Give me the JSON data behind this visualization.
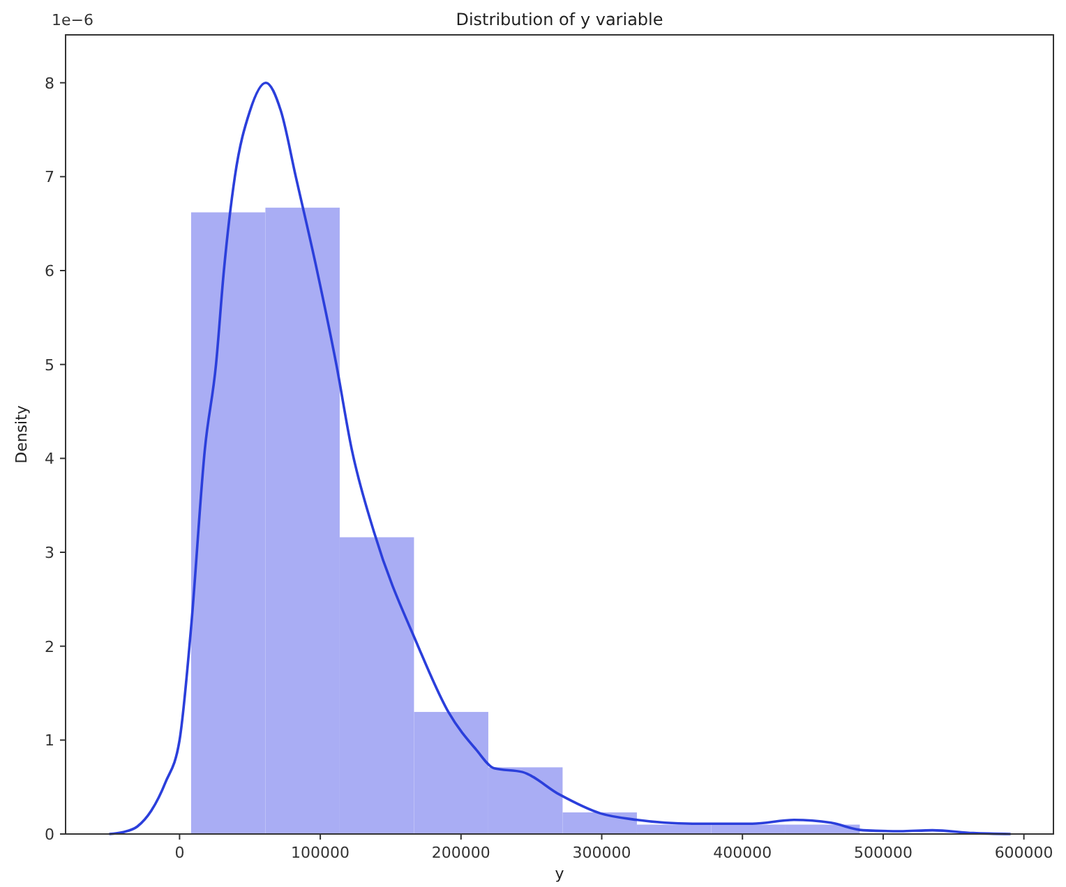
{
  "chart_data": {
    "type": "histogram",
    "title": "Distribution of y variable",
    "xlabel": "y",
    "ylabel": "Density",
    "annotations": [
      "1e−6"
    ],
    "xlim": [
      -81000,
      621000
    ],
    "xticks": [
      0,
      100000,
      200000,
      300000,
      400000,
      500000,
      600000
    ],
    "ylim": [
      0,
      8.51
    ],
    "yticks": [
      0,
      1,
      2,
      3,
      4,
      5,
      6,
      7,
      8
    ],
    "series": [
      {
        "color": "#a9adf4",
        "bins": [
          8200,
          61000,
          113800,
          166600,
          219400,
          272200,
          325000,
          377800,
          430600,
          483400
        ],
        "values": [
          6.62,
          6.67,
          3.16,
          1.3,
          0.71,
          0.23,
          0.1,
          0.1,
          0.1
        ]
      },
      {
        "type": "line",
        "color": "#2b3fdb",
        "x": [
          -50000,
          -40000,
          -30000,
          -20000,
          -10000,
          0,
          8200,
          18000,
          25900,
          31500,
          39300,
          50000,
          61300,
          72000,
          82600,
          97700,
          111400,
          122300,
          138500,
          169500,
          191000,
          210700,
          223600,
          243700,
          270000,
          299000,
          325200,
          364600,
          407000,
          436600,
          462800,
          485800,
          512000,
          535000,
          564000,
          590600
        ],
        "values": [
          0,
          0.02,
          0.08,
          0.25,
          0.55,
          1.0,
          2.2,
          4.1,
          5.0,
          6.0,
          7.0,
          7.7,
          8.0,
          7.7,
          7.0,
          6.0,
          5.0,
          4.1,
          3.2,
          2.0,
          1.3,
          0.9,
          0.7,
          0.66,
          0.42,
          0.22,
          0.15,
          0.11,
          0.11,
          0.15,
          0.12,
          0.04,
          0.03,
          0.04,
          0.01,
          0
        ]
      }
    ]
  }
}
